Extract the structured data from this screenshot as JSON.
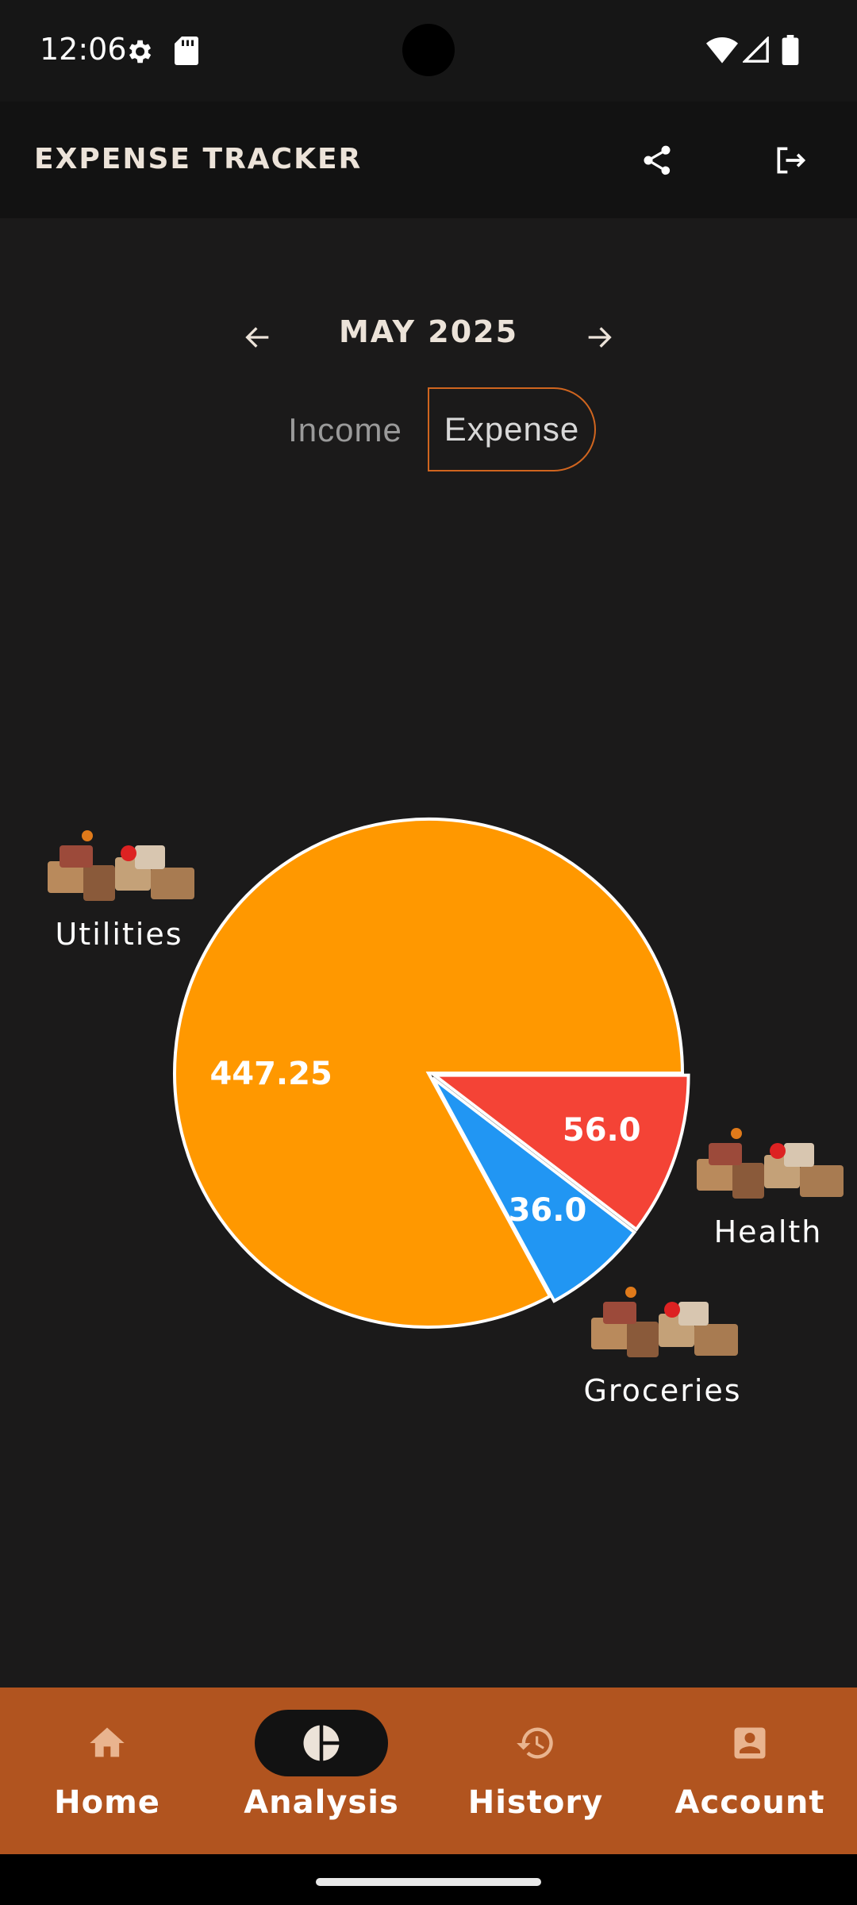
{
  "status_bar": {
    "time": "12:06",
    "icons": [
      "settings-icon",
      "sd-card-icon",
      "wifi-icon",
      "signal-icon",
      "battery-icon"
    ]
  },
  "app_bar": {
    "title": "EXPENSE TRACKER",
    "actions": [
      "share-icon",
      "logout-icon"
    ]
  },
  "period": {
    "label": "MAY 2025",
    "prev_icon": "arrow-left-icon",
    "next_icon": "arrow-right-icon"
  },
  "toggle": {
    "income_label": "Income",
    "expense_label": "Expense",
    "selected": "Expense",
    "accent": "#d0651f"
  },
  "chart_data": {
    "type": "pie",
    "slices": [
      {
        "label": "Utilities",
        "value": 447.25,
        "value_label": "447.25",
        "color": "#ff9800"
      },
      {
        "label": "Health",
        "value": 56.0,
        "value_label": "56.0",
        "color": "#f44336"
      },
      {
        "label": "Groceries",
        "value": 36.0,
        "value_label": "36.0",
        "color": "#2196f3"
      }
    ]
  },
  "bottom_nav": {
    "background": "#b1541f",
    "items": [
      {
        "label": "Home",
        "icon": "home-icon"
      },
      {
        "label": "Analysis",
        "icon": "pie-chart-icon",
        "active": true
      },
      {
        "label": "History",
        "icon": "history-icon"
      },
      {
        "label": "Account",
        "icon": "account-icon"
      }
    ]
  }
}
